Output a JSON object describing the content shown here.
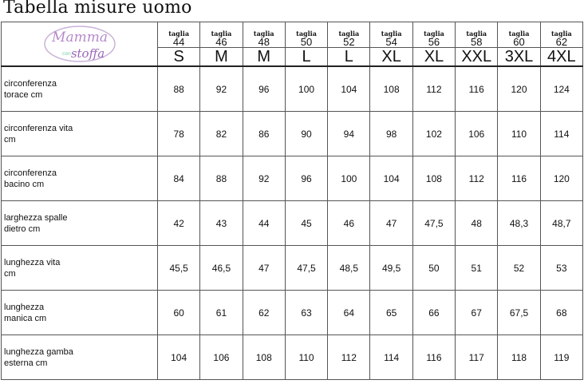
{
  "title": "Tabella misure uomo",
  "logo": {
    "text_top": "Mamma",
    "text_small": "con",
    "text_bottom": "stoffa",
    "color": "#b58ac9",
    "accent": "#6cc9a0"
  },
  "taglia_label": "taglia",
  "sizes": [
    {
      "num": "44",
      "letter": "S"
    },
    {
      "num": "46",
      "letter": "M"
    },
    {
      "num": "48",
      "letter": "M"
    },
    {
      "num": "50",
      "letter": "L"
    },
    {
      "num": "52",
      "letter": "L"
    },
    {
      "num": "54",
      "letter": "XL"
    },
    {
      "num": "56",
      "letter": "XL"
    },
    {
      "num": "58",
      "letter": "XXL"
    },
    {
      "num": "60",
      "letter": "3XL"
    },
    {
      "num": "62",
      "letter": "4XL"
    }
  ],
  "rows": [
    {
      "label1": "circonferenza",
      "label2": "torace  cm",
      "values": [
        "88",
        "92",
        "96",
        "100",
        "104",
        "108",
        "112",
        "116",
        "120",
        "124"
      ]
    },
    {
      "label1": "circonferenza vita",
      "label2": "cm",
      "values": [
        "78",
        "82",
        "86",
        "90",
        "94",
        "98",
        "102",
        "106",
        "110",
        "114"
      ]
    },
    {
      "label1": "circonferenza",
      "label2": "bacino cm",
      "values": [
        "84",
        "88",
        "92",
        "96",
        "100",
        "104",
        "108",
        "112",
        "116",
        "120"
      ]
    },
    {
      "label1": "larghezza spalle",
      "label2": "dietro  cm",
      "values": [
        "42",
        "43",
        "44",
        "45",
        "46",
        "47",
        "47,5",
        "48",
        "48,3",
        "48,7"
      ]
    },
    {
      "label1": "lunghezza vita",
      "label2": "cm",
      "values": [
        "45,5",
        "46,5",
        "47",
        "47,5",
        "48,5",
        "49,5",
        "50",
        "51",
        "52",
        "53"
      ]
    },
    {
      "label1": "lunghezza",
      "label2": "manica  cm",
      "values": [
        "60",
        "61",
        "62",
        "63",
        "64",
        "65",
        "66",
        "67",
        "67,5",
        "68"
      ]
    },
    {
      "label1": "lunghezza gamba",
      "label2": "esterna cm",
      "values": [
        "104",
        "106",
        "108",
        "110",
        "112",
        "114",
        "116",
        "117",
        "118",
        "119"
      ]
    }
  ]
}
